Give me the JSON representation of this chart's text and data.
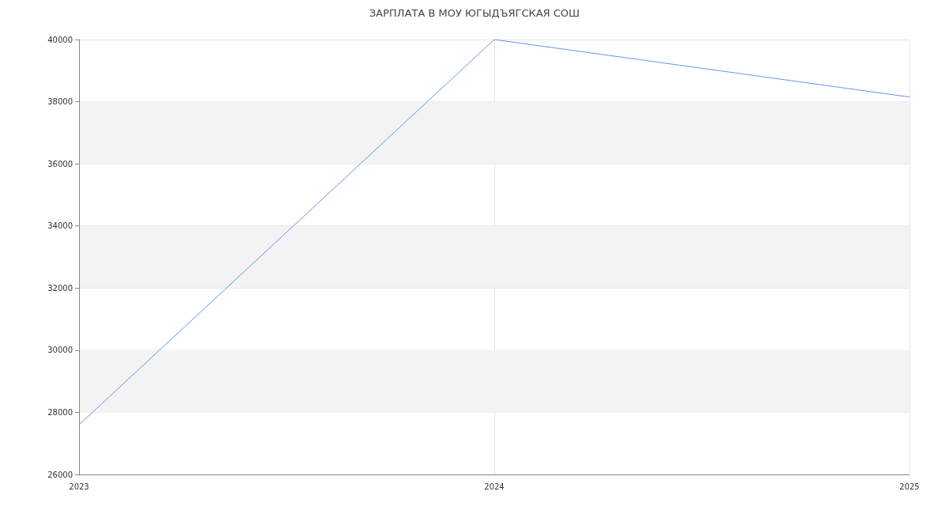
{
  "chart_data": {
    "type": "line",
    "title": "ЗАРПЛАТА В МОУ ЮГЫДЪЯГСКАЯ СОШ",
    "x": [
      2023,
      2024,
      2025
    ],
    "values": [
      27600,
      40000,
      38150
    ],
    "color": "#6495ed",
    "xlim": [
      2023,
      2025
    ],
    "xticks": [
      2023,
      2024,
      2025
    ],
    "ylim": [
      26000,
      40000
    ],
    "yticks": [
      26000,
      28000,
      30000,
      32000,
      34000,
      36000,
      38000,
      40000
    ],
    "grid": true,
    "marker": "none",
    "bands": [
      {
        "axis": "y",
        "from": 28000,
        "to": 30000,
        "color": "#f3f3f3"
      },
      {
        "axis": "y",
        "from": 32000,
        "to": 34000,
        "color": "#f3f3f3"
      },
      {
        "axis": "y",
        "from": 36000,
        "to": 38000,
        "color": "#f3f3f3"
      }
    ]
  }
}
